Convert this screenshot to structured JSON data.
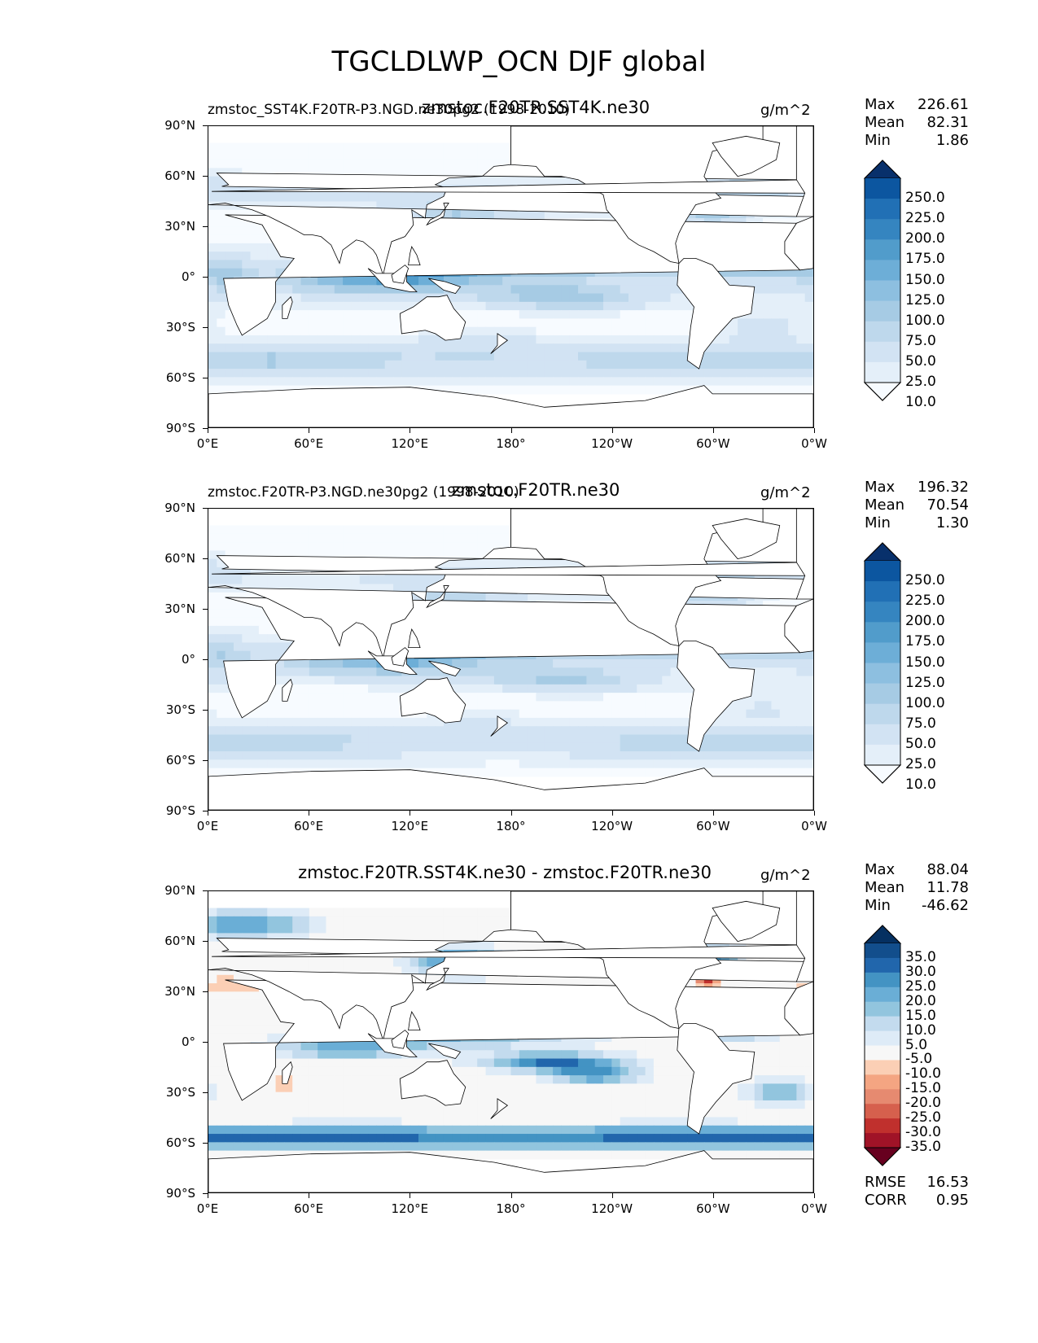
{
  "title": "TGCLDLWP_OCN DJF global",
  "chart_data": [
    {
      "type": "heatmap",
      "subtitle_left": "zmstoc_SST4K.F20TR-P3.NGD.ne30pg2 (1998-2010)",
      "subtitle_center": "zmstoc.F20TR.SST4K.ne30",
      "units": "g/m^2",
      "stats": {
        "max_label": "Max",
        "max": "226.61",
        "mean_label": "Mean",
        "mean": "82.31",
        "min_label": "Min",
        "min": "1.86"
      },
      "colorbar_levels": [
        "250.0",
        "225.0",
        "200.0",
        "175.0",
        "150.0",
        "125.0",
        "100.0",
        "75.0",
        "50.0",
        "25.0",
        "10.0"
      ],
      "palette": [
        "#f7fbff",
        "#e4eff9",
        "#d2e3f3",
        "#bed8ec",
        "#a6cbe4",
        "#8dbfe0",
        "#6daed7",
        "#519ccb",
        "#3585c0",
        "#2170b5",
        "#0c56a0",
        "#08306b"
      ]
    },
    {
      "type": "heatmap",
      "subtitle_left": "zmstoc.F20TR-P3.NGD.ne30pg2 (1998-2010)",
      "subtitle_center": "zmstoc.F20TR.ne30",
      "units": "g/m^2",
      "stats": {
        "max_label": "Max",
        "max": "196.32",
        "mean_label": "Mean",
        "mean": "70.54",
        "min_label": "Min",
        "min": "1.30"
      },
      "colorbar_levels": [
        "250.0",
        "225.0",
        "200.0",
        "175.0",
        "150.0",
        "125.0",
        "100.0",
        "75.0",
        "50.0",
        "25.0",
        "10.0"
      ],
      "palette": [
        "#f7fbff",
        "#e4eff9",
        "#d2e3f3",
        "#bed8ec",
        "#a6cbe4",
        "#8dbfe0",
        "#6daed7",
        "#519ccb",
        "#3585c0",
        "#2170b5",
        "#0c56a0",
        "#08306b"
      ]
    },
    {
      "type": "heatmap",
      "subtitle_left": "",
      "subtitle_center": "zmstoc.F20TR.SST4K.ne30 - zmstoc.F20TR.ne30",
      "units": "g/m^2",
      "stats": {
        "max_label": "Max",
        "max": "88.04",
        "mean_label": "Mean",
        "mean": "11.78",
        "min_label": "Min",
        "min": "-46.62",
        "rmse_label": "RMSE",
        "rmse": "16.53",
        "corr_label": "CORR",
        "corr": "0.95"
      },
      "colorbar_levels": [
        "35.0",
        "30.0",
        "25.0",
        "20.0",
        "15.0",
        "10.0",
        "5.0",
        "-5.0",
        "-10.0",
        "-15.0",
        "-20.0",
        "-25.0",
        "-30.0",
        "-35.0"
      ],
      "palette": [
        "#67001f",
        "#a01327",
        "#c0302d",
        "#d6604d",
        "#e68a70",
        "#f4a582",
        "#fbcfb5",
        "#f7f7f7",
        "#deebf7",
        "#c3dbee",
        "#92c5de",
        "#6aaed6",
        "#4393c3",
        "#2166ac",
        "#124e8c",
        "#053061"
      ]
    }
  ],
  "axes": {
    "yticks": [
      "90°N",
      "60°N",
      "30°N",
      "0°",
      "30°S",
      "60°S",
      "90°S"
    ],
    "xticks": [
      "0°E",
      "60°E",
      "120°E",
      "180°",
      "120°W",
      "60°W",
      "0°W"
    ]
  }
}
